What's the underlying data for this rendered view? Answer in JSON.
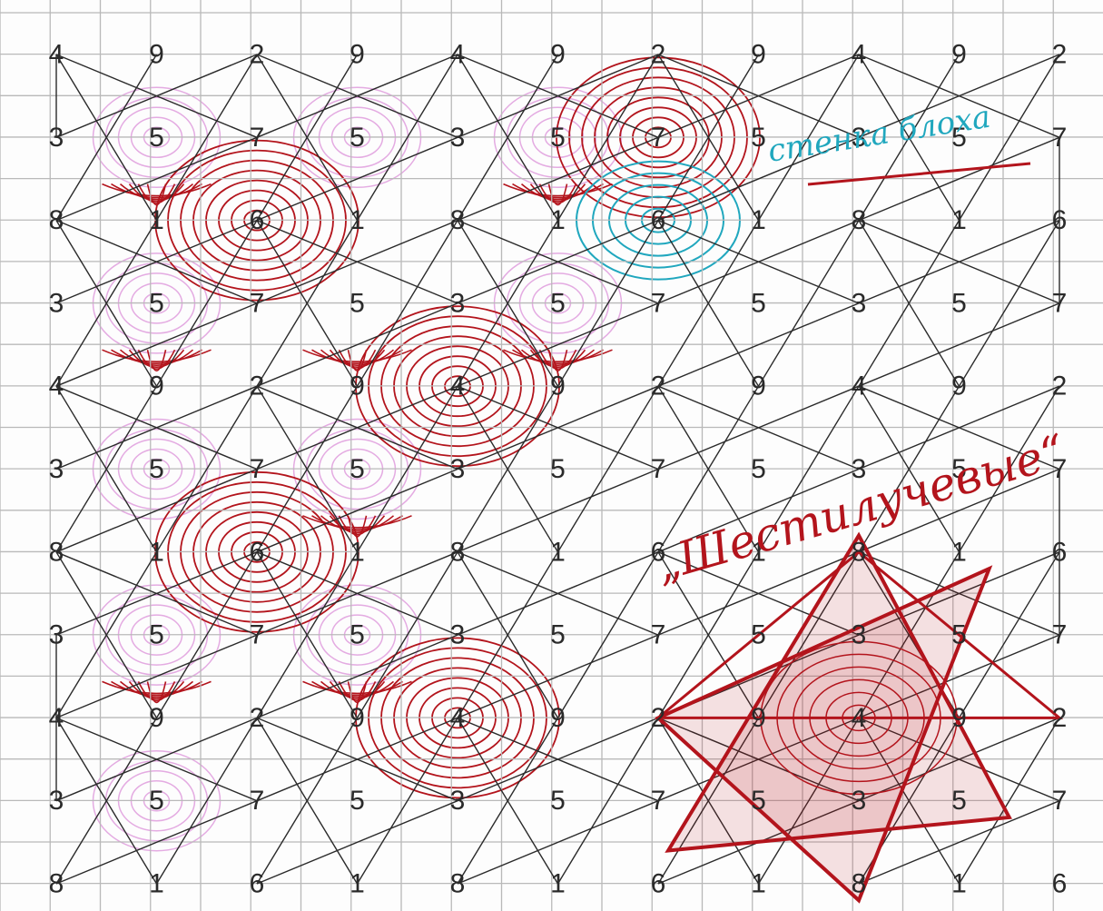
{
  "grid_rows": [
    [
      "4",
      "9",
      "2",
      "9",
      "4",
      "9",
      "2",
      "9",
      "4",
      "9",
      "2"
    ],
    [
      "3",
      "5",
      "7",
      "5",
      "3",
      "5",
      "7",
      "5",
      "3",
      "5",
      "7"
    ],
    [
      "8",
      "1",
      "6",
      "1",
      "8",
      "1",
      "6",
      "1",
      "8",
      "1",
      "6"
    ],
    [
      "3",
      "5",
      "7",
      "5",
      "3",
      "5",
      "7",
      "5",
      "3",
      "5",
      "7"
    ],
    [
      "4",
      "9",
      "2",
      "9",
      "4",
      "9",
      "2",
      "9",
      "4",
      "9",
      "2"
    ],
    [
      "3",
      "5",
      "7",
      "5",
      "3",
      "5",
      "7",
      "5",
      "3",
      "5",
      "7"
    ],
    [
      "8",
      "1",
      "6",
      "1",
      "8",
      "1",
      "6",
      "1",
      "8",
      "1",
      "6"
    ],
    [
      "3",
      "5",
      "7",
      "5",
      "3",
      "5",
      "7",
      "5",
      "3",
      "5",
      "7"
    ],
    [
      "4",
      "9",
      "2",
      "9",
      "4",
      "9",
      "2",
      "9",
      "4",
      "9",
      "2"
    ],
    [
      "3",
      "5",
      "7",
      "5",
      "3",
      "5",
      "7",
      "5",
      "3",
      "5",
      "7"
    ],
    [
      "8",
      "1",
      "6",
      "1",
      "8",
      "1",
      "6",
      "1",
      "8",
      "1",
      "6"
    ]
  ],
  "annotations": {
    "teal_note": "стенка блоха",
    "red_note": "„Шестилучевые“"
  },
  "colors": {
    "paper": "#fdfdfd",
    "grid_line": "#b9b9b9",
    "black_line": "#2a2a2a",
    "red_ink": "#b3141c",
    "pink_ink": "#d987d6",
    "teal_ink": "#20a7be"
  }
}
